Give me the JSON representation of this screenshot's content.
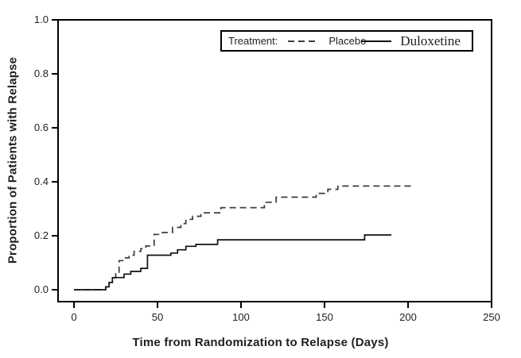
{
  "chart_data": {
    "type": "line",
    "subtype": "kaplan-meier-step-cumulative",
    "title": "",
    "xlabel": "Time from Randomization to Relapse (Days)",
    "ylabel": "Proportion of Patients with Relapse",
    "xlim": [
      0,
      250
    ],
    "ylim": [
      0.0,
      1.0
    ],
    "xticks": [
      0,
      50,
      100,
      150,
      200,
      250
    ],
    "yticks": [
      "0.0",
      "0.2",
      "0.4",
      "0.6",
      "0.8",
      "1.0"
    ],
    "grid": false,
    "legend": {
      "position": "top-right-inside",
      "label": "Treatment:"
    },
    "series": [
      {
        "name": "Placebo",
        "line_style": "dashed",
        "color": "#3d3d3d",
        "end_x": 203,
        "steps": [
          [
            0,
            0
          ],
          [
            19,
            0.011
          ],
          [
            21,
            0.027
          ],
          [
            23,
            0.044
          ],
          [
            25,
            0.059
          ],
          [
            27,
            0.108
          ],
          [
            30,
            0.118
          ],
          [
            33,
            0.128
          ],
          [
            36,
            0.142
          ],
          [
            40,
            0.152
          ],
          [
            43,
            0.162
          ],
          [
            48,
            0.205
          ],
          [
            53,
            0.212
          ],
          [
            59,
            0.231
          ],
          [
            64,
            0.245
          ],
          [
            67,
            0.261
          ],
          [
            71,
            0.272
          ],
          [
            76,
            0.285
          ],
          [
            88,
            0.304
          ],
          [
            114,
            0.324
          ],
          [
            121,
            0.343
          ],
          [
            145,
            0.357
          ],
          [
            152,
            0.372
          ],
          [
            158,
            0.384
          ]
        ]
      },
      {
        "name": "Duloxetine",
        "line_style": "solid",
        "color": "#111111",
        "end_x": 190,
        "steps": [
          [
            0,
            0
          ],
          [
            19,
            0.011
          ],
          [
            21,
            0.027
          ],
          [
            23,
            0.045
          ],
          [
            30,
            0.058
          ],
          [
            34,
            0.068
          ],
          [
            40,
            0.079
          ],
          [
            44,
            0.128
          ],
          [
            58,
            0.136
          ],
          [
            62,
            0.148
          ],
          [
            67,
            0.161
          ],
          [
            73,
            0.168
          ],
          [
            86,
            0.185
          ],
          [
            174,
            0.203
          ]
        ]
      }
    ]
  }
}
